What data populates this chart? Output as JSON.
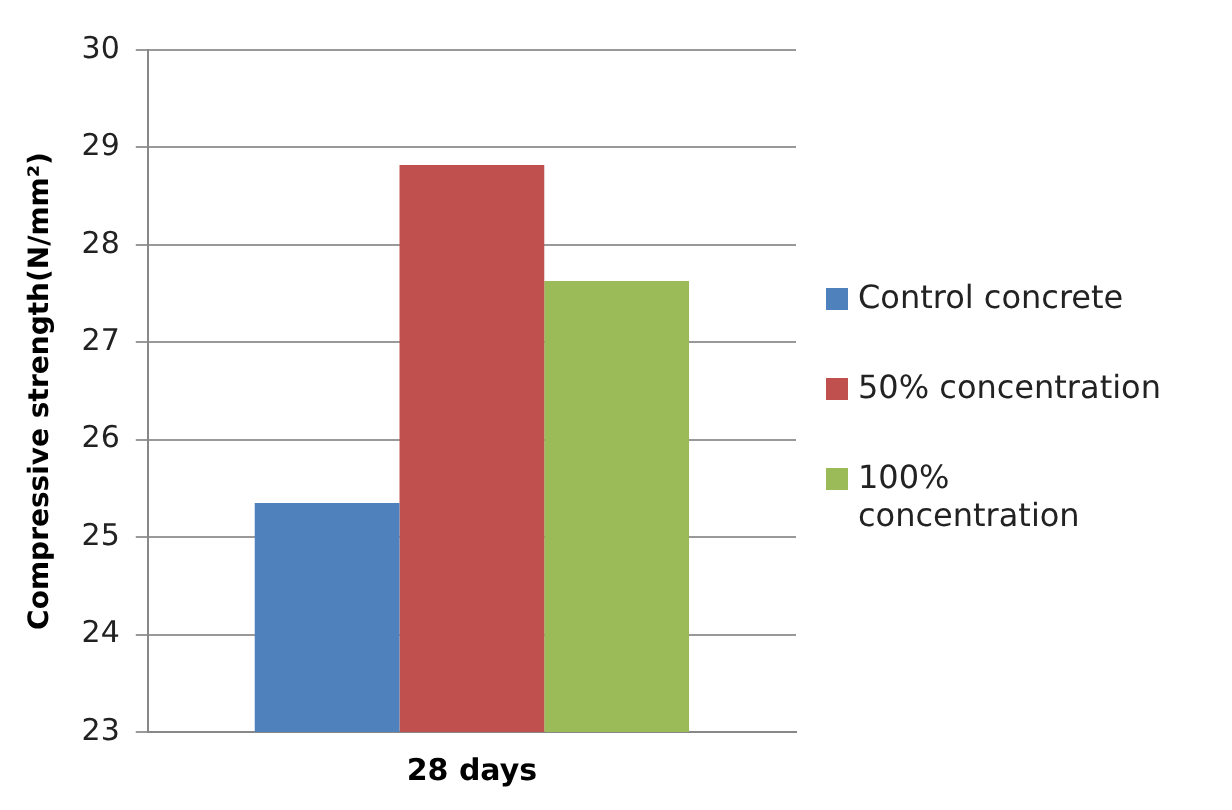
{
  "chart_data": {
    "type": "bar",
    "xlabel": null,
    "ylabel": "Compressive strength(N/mm²)",
    "categories": [
      "28 days"
    ],
    "series": [
      {
        "name": "Control concrete",
        "color": "#4f81bd",
        "values": [
          25.35
        ]
      },
      {
        "name": "50% concentration",
        "color": "#c0504d",
        "values": [
          28.82
        ]
      },
      {
        "name": "100% concentration",
        "color": "#9bbb59",
        "values": [
          27.63
        ]
      }
    ],
    "ylim": [
      23,
      30
    ],
    "yticks": [
      23,
      24,
      25,
      26,
      27,
      28,
      29,
      30
    ],
    "grid": "y",
    "legend": "right"
  }
}
